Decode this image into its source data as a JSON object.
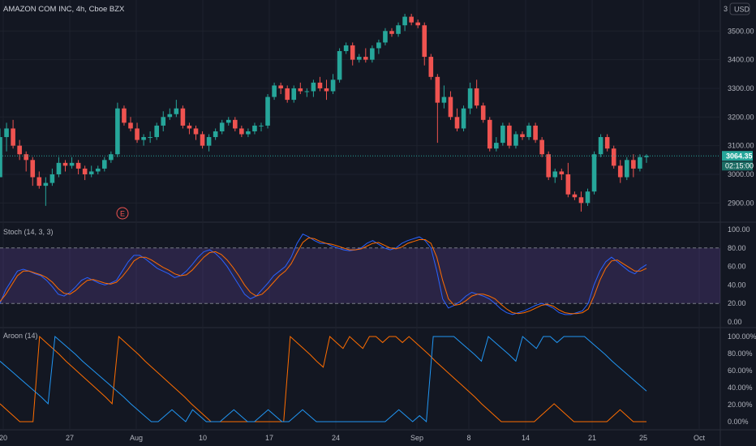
{
  "header": {
    "title": "AMAZON COM INC, 4h, Cboe BZX",
    "currency": "USD",
    "corner_number": "3"
  },
  "colors": {
    "background": "#131722",
    "grid": "#1e222d",
    "up": "#26a69a",
    "down": "#ef5350",
    "stoch_k": "#2962ff",
    "stoch_d": "#ff6d00",
    "stoch_band": "#7e57c2",
    "aroon_up": "#ff6d00",
    "aroon_down": "#2196f3"
  },
  "chart_data": [
    {
      "type": "candlestick",
      "title": "AMAZON COM INC, 4h, Cboe BZX",
      "ylim": [
        2850,
        3580
      ],
      "y_ticks": [
        "3500.00",
        "3400.00",
        "3300.00",
        "3200.00",
        "3100.00",
        "3000.00",
        "2900.00"
      ],
      "x_ticks": [
        "20",
        "27",
        "Aug",
        "10",
        "17",
        "24",
        "Sep",
        "8",
        "14",
        "21",
        "Oct",
        "25"
      ],
      "last_price": "3064.35",
      "countdown": "02:15:00",
      "earnings_marker": "E",
      "candles": [
        [
          2990,
          3160,
          2990,
          3130
        ],
        [
          3130,
          3180,
          3080,
          3160
        ],
        [
          3160,
          3190,
          3090,
          3100
        ],
        [
          3100,
          3120,
          3050,
          3070
        ],
        [
          3070,
          3080,
          3010,
          3050
        ],
        [
          3050,
          3060,
          2960,
          2990
        ],
        [
          2990,
          3010,
          2950,
          2960
        ],
        [
          2960,
          2990,
          2890,
          2970
        ],
        [
          2970,
          3020,
          2960,
          3000
        ],
        [
          3000,
          3060,
          2990,
          3040
        ],
        [
          3040,
          3050,
          3010,
          3030
        ],
        [
          3030,
          3060,
          3020,
          3040
        ],
        [
          3040,
          3050,
          3000,
          3020
        ],
        [
          3020,
          3030,
          2980,
          3000
        ],
        [
          3000,
          3030,
          2990,
          3010
        ],
        [
          3010,
          3030,
          3000,
          3020
        ],
        [
          3020,
          3060,
          3010,
          3050
        ],
        [
          3050,
          3080,
          3040,
          3070
        ],
        [
          3070,
          3250,
          3060,
          3230
        ],
        [
          3230,
          3240,
          3170,
          3180
        ],
        [
          3180,
          3200,
          3150,
          3160
        ],
        [
          3160,
          3180,
          3110,
          3120
        ],
        [
          3120,
          3140,
          3100,
          3130
        ],
        [
          3130,
          3150,
          3110,
          3130
        ],
        [
          3130,
          3180,
          3120,
          3170
        ],
        [
          3170,
          3220,
          3150,
          3200
        ],
        [
          3200,
          3230,
          3190,
          3210
        ],
        [
          3210,
          3260,
          3200,
          3230
        ],
        [
          3230,
          3240,
          3160,
          3170
        ],
        [
          3170,
          3180,
          3140,
          3160
        ],
        [
          3160,
          3170,
          3120,
          3140
        ],
        [
          3140,
          3150,
          3090,
          3100
        ],
        [
          3100,
          3140,
          3080,
          3130
        ],
        [
          3130,
          3160,
          3120,
          3150
        ],
        [
          3150,
          3190,
          3140,
          3180
        ],
        [
          3180,
          3200,
          3170,
          3190
        ],
        [
          3190,
          3200,
          3150,
          3160
        ],
        [
          3160,
          3170,
          3130,
          3140
        ],
        [
          3140,
          3160,
          3130,
          3150
        ],
        [
          3150,
          3180,
          3140,
          3170
        ],
        [
          3170,
          3180,
          3150,
          3170
        ],
        [
          3170,
          3280,
          3160,
          3270
        ],
        [
          3270,
          3320,
          3260,
          3310
        ],
        [
          3310,
          3320,
          3280,
          3300
        ],
        [
          3300,
          3310,
          3250,
          3260
        ],
        [
          3260,
          3310,
          3250,
          3300
        ],
        [
          3300,
          3320,
          3280,
          3290
        ],
        [
          3290,
          3300,
          3270,
          3290
        ],
        [
          3290,
          3330,
          3270,
          3320
        ],
        [
          3320,
          3340,
          3290,
          3300
        ],
        [
          3300,
          3330,
          3260,
          3290
        ],
        [
          3290,
          3350,
          3280,
          3330
        ],
        [
          3330,
          3440,
          3320,
          3430
        ],
        [
          3430,
          3460,
          3420,
          3450
        ],
        [
          3450,
          3460,
          3380,
          3400
        ],
        [
          3400,
          3420,
          3390,
          3410
        ],
        [
          3410,
          3440,
          3390,
          3400
        ],
        [
          3400,
          3450,
          3390,
          3440
        ],
        [
          3440,
          3470,
          3420,
          3460
        ],
        [
          3460,
          3510,
          3450,
          3500
        ],
        [
          3500,
          3510,
          3480,
          3490
        ],
        [
          3490,
          3530,
          3480,
          3520
        ],
        [
          3520,
          3560,
          3500,
          3550
        ],
        [
          3550,
          3560,
          3520,
          3530
        ],
        [
          3530,
          3540,
          3510,
          3520
        ],
        [
          3520,
          3530,
          3380,
          3410
        ],
        [
          3410,
          3420,
          3330,
          3340
        ],
        [
          3340,
          3350,
          3110,
          3250
        ],
        [
          3250,
          3310,
          3230,
          3270
        ],
        [
          3270,
          3290,
          3190,
          3200
        ],
        [
          3200,
          3230,
          3150,
          3160
        ],
        [
          3160,
          3240,
          3150,
          3230
        ],
        [
          3230,
          3320,
          3210,
          3300
        ],
        [
          3300,
          3330,
          3230,
          3240
        ],
        [
          3240,
          3250,
          3180,
          3190
        ],
        [
          3190,
          3200,
          3080,
          3090
        ],
        [
          3090,
          3130,
          3080,
          3110
        ],
        [
          3110,
          3180,
          3100,
          3170
        ],
        [
          3170,
          3180,
          3090,
          3100
        ],
        [
          3100,
          3150,
          3090,
          3140
        ],
        [
          3140,
          3150,
          3120,
          3130
        ],
        [
          3130,
          3180,
          3120,
          3170
        ],
        [
          3170,
          3180,
          3110,
          3120
        ],
        [
          3120,
          3130,
          3060,
          3070
        ],
        [
          3070,
          3080,
          2980,
          2990
        ],
        [
          2990,
          3020,
          2970,
          3010
        ],
        [
          3010,
          3020,
          2980,
          3000
        ],
        [
          3000,
          3040,
          2920,
          2930
        ],
        [
          2930,
          2940,
          2910,
          2920
        ],
        [
          2920,
          2940,
          2870,
          2900
        ],
        [
          2900,
          2950,
          2890,
          2940
        ],
        [
          2940,
          3080,
          2930,
          3070
        ],
        [
          3070,
          3140,
          3060,
          3130
        ],
        [
          3130,
          3140,
          3080,
          3090
        ],
        [
          3090,
          3100,
          3020,
          3030
        ],
        [
          3030,
          3050,
          2970,
          2990
        ],
        [
          2990,
          3060,
          2980,
          3050
        ],
        [
          3050,
          3070,
          2990,
          3020
        ],
        [
          3020,
          3070,
          3010,
          3060
        ],
        [
          3060,
          3070,
          3040,
          3064
        ]
      ]
    },
    {
      "type": "line",
      "title": "Stoch (14, 3, 3)",
      "ylim": [
        0,
        100
      ],
      "y_ticks": [
        "100.00",
        "80.00",
        "60.00",
        "40.00",
        "20.00",
        "0.00"
      ],
      "band": [
        20,
        80
      ],
      "series": [
        {
          "values": [
            20,
            35,
            45,
            55,
            57,
            55,
            52,
            50,
            45,
            38,
            30,
            28,
            32,
            38,
            45,
            48,
            45,
            42,
            40,
            42,
            45,
            55,
            65,
            72,
            72,
            68,
            63,
            58,
            55,
            52,
            48,
            50,
            55,
            62,
            70,
            76,
            78,
            74,
            68,
            60,
            50,
            40,
            30,
            25,
            28,
            35,
            42,
            50,
            55,
            60,
            70,
            85,
            95,
            92,
            88,
            85,
            85,
            82,
            80,
            78,
            77,
            78,
            80,
            85,
            88,
            84,
            80,
            78,
            80,
            85,
            88,
            90,
            92,
            88,
            80,
            55,
            25,
            15,
            18,
            22,
            28,
            32,
            30,
            28,
            25,
            20,
            14,
            10,
            8,
            10,
            12,
            15,
            18,
            20,
            18,
            15,
            10,
            8,
            8,
            10,
            12,
            20,
            40,
            55,
            65,
            70,
            65,
            60,
            55,
            52,
            58,
            62
          ]
        },
        {
          "values": [
            22,
            30,
            40,
            50,
            55,
            55,
            53,
            51,
            48,
            43,
            36,
            31,
            30,
            34,
            40,
            45,
            46,
            44,
            42,
            41,
            43,
            49,
            57,
            66,
            70,
            70,
            67,
            63,
            59,
            56,
            52,
            50,
            51,
            56,
            63,
            70,
            75,
            76,
            73,
            67,
            59,
            50,
            40,
            32,
            28,
            30,
            36,
            43,
            50,
            55,
            63,
            75,
            86,
            91,
            90,
            87,
            85,
            84,
            82,
            80,
            78,
            78,
            79,
            82,
            85,
            86,
            83,
            80,
            79,
            81,
            85,
            87,
            89,
            89,
            85,
            70,
            45,
            25,
            18,
            19,
            23,
            28,
            30,
            30,
            28,
            25,
            19,
            14,
            10,
            9,
            10,
            12,
            15,
            18,
            19,
            17,
            13,
            10,
            9,
            9,
            10,
            14,
            28,
            45,
            58,
            66,
            67,
            63,
            59,
            55,
            55,
            58
          ]
        }
      ]
    },
    {
      "type": "line",
      "title": "Aroon (14)",
      "ylim": [
        0,
        100
      ],
      "y_ticks": [
        "100.00%",
        "80.00%",
        "60.00%",
        "40.00%",
        "20.00%",
        "0.00%"
      ],
      "series": [
        {
          "values": [
            21,
            14,
            7,
            0,
            0,
            0,
            100,
            93,
            86,
            79,
            71,
            64,
            57,
            50,
            43,
            36,
            29,
            21,
            100,
            93,
            86,
            79,
            71,
            64,
            57,
            50,
            43,
            36,
            29,
            21,
            14,
            7,
            0,
            0,
            0,
            0,
            0,
            0,
            0,
            0,
            0,
            0,
            0,
            0,
            100,
            93,
            86,
            79,
            71,
            64,
            100,
            93,
            86,
            100,
            93,
            86,
            100,
            100,
            93,
            100,
            100,
            93,
            100,
            93,
            86,
            79,
            71,
            64,
            57,
            50,
            43,
            36,
            29,
            21,
            14,
            7,
            0,
            0,
            0,
            0,
            0,
            0,
            7,
            14,
            21,
            14,
            7,
            0,
            0,
            0,
            0,
            0,
            0,
            7,
            14,
            7,
            0,
            0,
            0
          ]
        },
        {
          "values": [
            71,
            64,
            57,
            50,
            43,
            36,
            29,
            21,
            100,
            93,
            86,
            79,
            71,
            64,
            57,
            50,
            43,
            36,
            29,
            21,
            14,
            7,
            0,
            0,
            7,
            14,
            7,
            0,
            14,
            7,
            0,
            0,
            0,
            7,
            14,
            7,
            0,
            0,
            7,
            14,
            7,
            0,
            0,
            7,
            14,
            7,
            0,
            0,
            0,
            0,
            0,
            0,
            0,
            0,
            0,
            0,
            0,
            7,
            14,
            7,
            0,
            7,
            0,
            100,
            100,
            100,
            100,
            93,
            86,
            79,
            71,
            100,
            93,
            86,
            79,
            71,
            100,
            93,
            86,
            100,
            100,
            93,
            100,
            100,
            100,
            100,
            93,
            86,
            79,
            71,
            64,
            57,
            50,
            43,
            36
          ]
        }
      ]
    }
  ]
}
